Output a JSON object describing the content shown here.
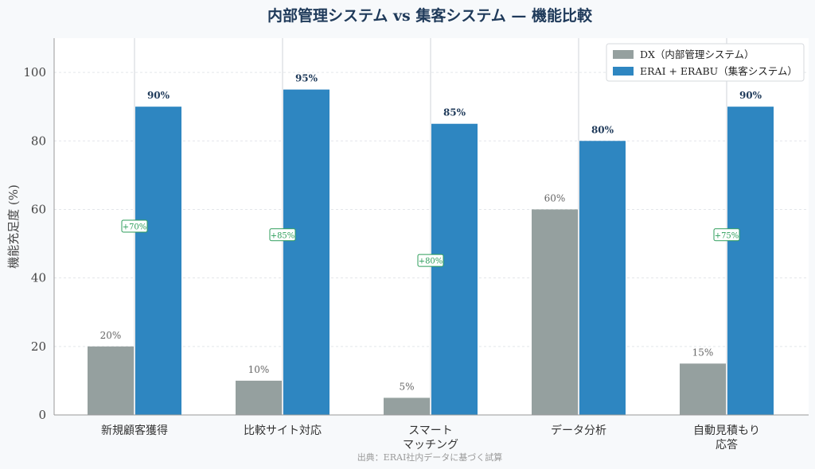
{
  "chart_data": {
    "type": "bar",
    "title": "内部管理システム vs 集客システム — 機能比較",
    "ylabel": "機能充足度 (%)",
    "xlabel": "",
    "ylim": [
      0,
      110
    ],
    "yticks": [
      0,
      20,
      40,
      60,
      80,
      100
    ],
    "categories": [
      [
        "新規顧客獲得"
      ],
      [
        "比較サイト対応"
      ],
      [
        "スマート",
        "マッチング"
      ],
      [
        "データ分析"
      ],
      [
        "自動見積もり",
        "応答"
      ]
    ],
    "series": [
      {
        "name": "DX（内部管理システム）",
        "color": "#95a09f",
        "values": [
          20,
          10,
          5,
          60,
          15
        ],
        "labels": [
          "20%",
          "10%",
          "5%",
          "60%",
          "15%"
        ]
      },
      {
        "name": "ERAI + ERABU（集客システム）",
        "color": "#2e86c1",
        "values": [
          90,
          95,
          85,
          80,
          90
        ],
        "labels": [
          "90%",
          "95%",
          "85%",
          "80%",
          "90%"
        ]
      }
    ],
    "differences": [
      "+70%",
      "+85%",
      "+80%",
      "",
      "+75%"
    ],
    "legend_position": "top-right",
    "grid": true,
    "source": "出典：ERAI社内データに基づく試算"
  }
}
